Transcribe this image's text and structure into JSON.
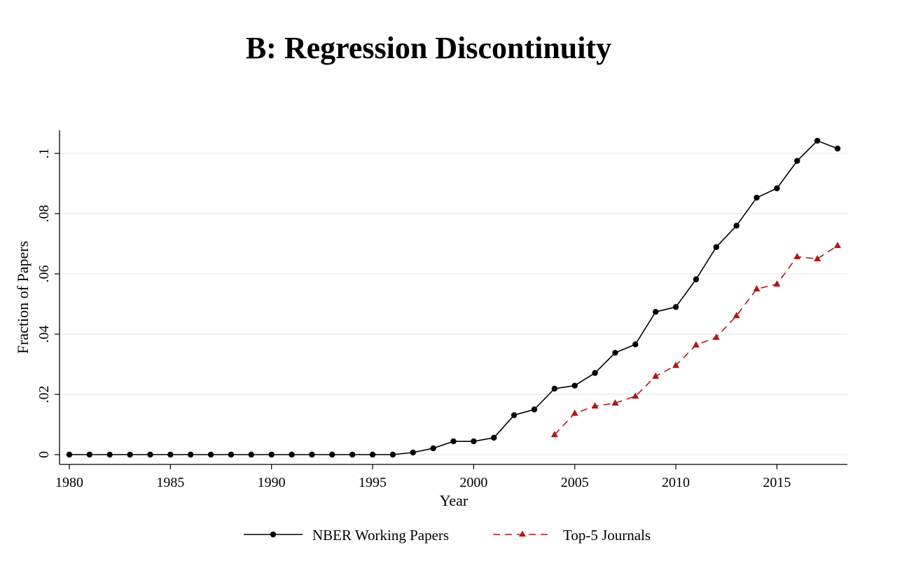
{
  "chart_data": {
    "type": "line",
    "title": "B: Regression Discontinuity",
    "xlabel": "Year",
    "ylabel": "Fraction of Papers",
    "xlim": [
      1980,
      2018
    ],
    "ylim": [
      0,
      0.1
    ],
    "xticks": [
      1980,
      1985,
      1990,
      1995,
      2000,
      2005,
      2010,
      2015
    ],
    "yticks": [
      0,
      0.02,
      0.04,
      0.06,
      0.08,
      0.1
    ],
    "yticklabels": [
      "0",
      ".02",
      ".04",
      ".06",
      ".08",
      ".1"
    ],
    "grid": true,
    "legend_position": "bottom",
    "series": [
      {
        "name": "NBER Working Papers",
        "color": "#000000",
        "line_style": "solid",
        "marker": "circle",
        "x": [
          1980,
          1981,
          1982,
          1983,
          1984,
          1985,
          1986,
          1987,
          1988,
          1989,
          1990,
          1991,
          1992,
          1993,
          1994,
          1995,
          1996,
          1997,
          1998,
          1999,
          2000,
          2001,
          2002,
          2003,
          2004,
          2005,
          2006,
          2007,
          2008,
          2009,
          2010,
          2011,
          2012,
          2013,
          2014,
          2015,
          2016,
          2017,
          2018
        ],
        "values": [
          0,
          0,
          0,
          0,
          0,
          0,
          0,
          0,
          0,
          0,
          0,
          0,
          0,
          0,
          0,
          0,
          0,
          0.0007,
          0.0021,
          0.0044,
          0.0044,
          0.0056,
          0.0131,
          0.015,
          0.0219,
          0.0229,
          0.0271,
          0.0338,
          0.0366,
          0.0474,
          0.049,
          0.0582,
          0.0689,
          0.076,
          0.0853,
          0.0884,
          0.0975,
          0.1042,
          0.1016
        ]
      },
      {
        "name": "Top-5 Journals",
        "color": "#aa1a1a",
        "line_style": "dashed",
        "marker": "triangle",
        "x": [
          2004,
          2005,
          2006,
          2007,
          2008,
          2009,
          2010,
          2011,
          2012,
          2013,
          2014,
          2015,
          2016,
          2017,
          2018
        ],
        "values": [
          0.0066,
          0.0137,
          0.0161,
          0.0171,
          0.0194,
          0.026,
          0.0296,
          0.0364,
          0.0389,
          0.0461,
          0.055,
          0.0566,
          0.0657,
          0.065,
          0.0694
        ]
      }
    ]
  }
}
